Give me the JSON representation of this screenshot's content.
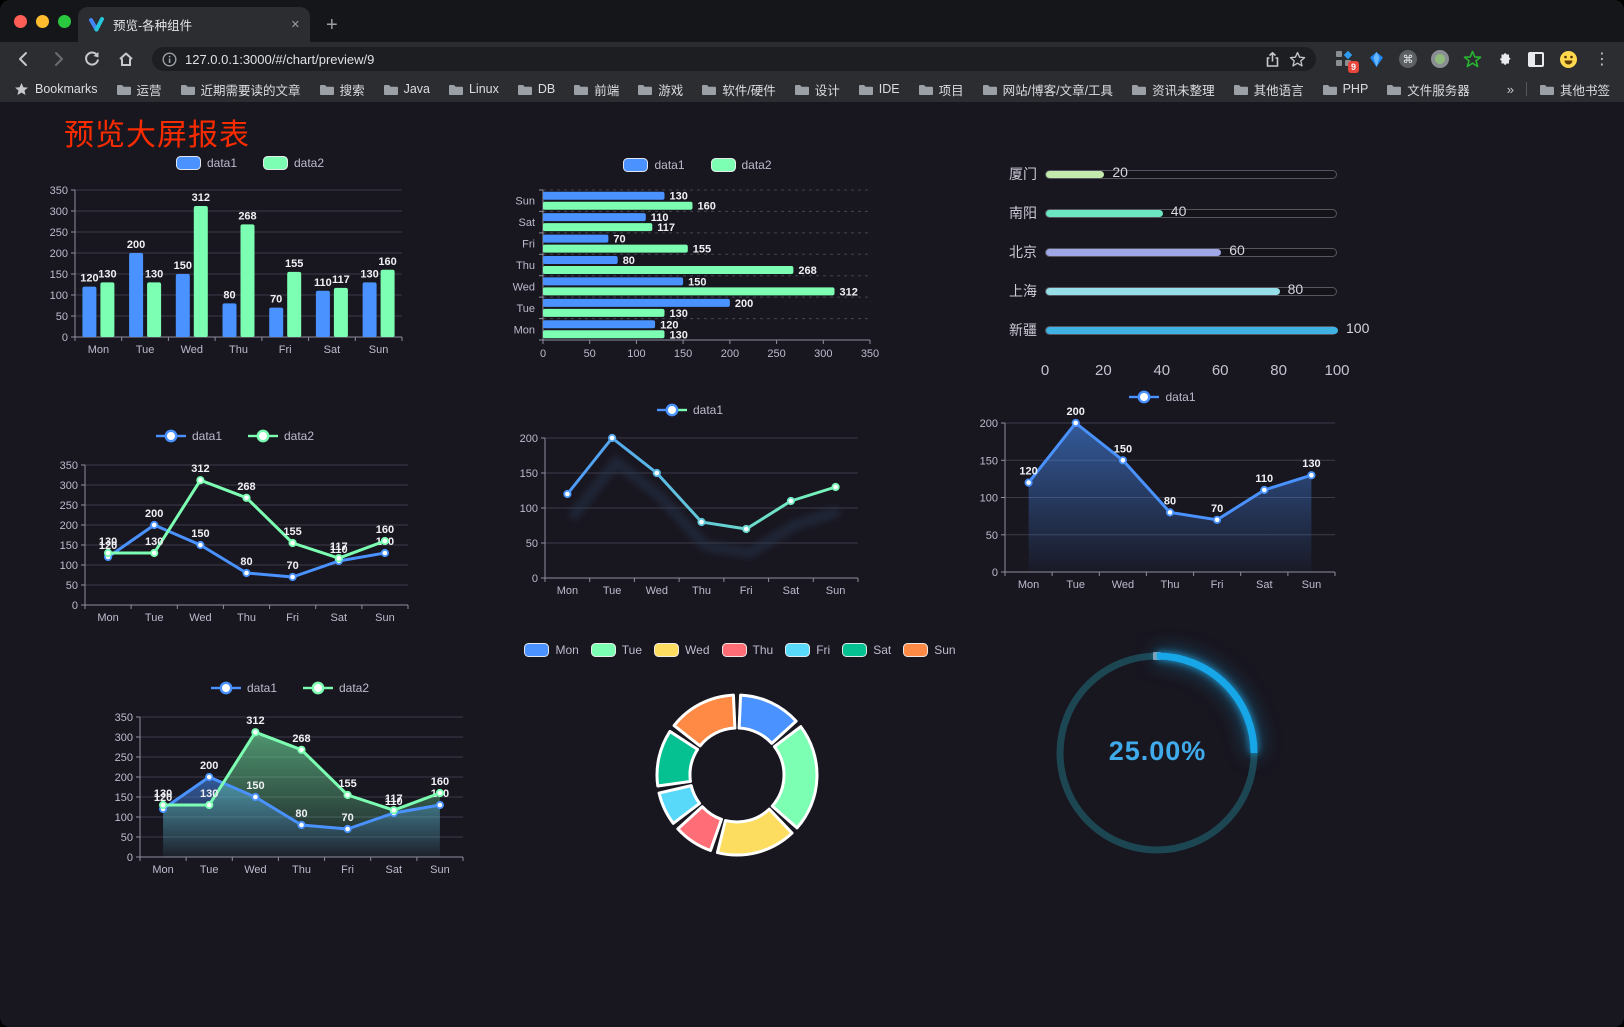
{
  "browser": {
    "tab": {
      "title": "预览-各种组件",
      "close_glyph": "✕"
    },
    "new_tab_glyph": "+",
    "url": "127.0.0.1:3000/#/chart/preview/9",
    "bookmarks_bar": {
      "bookmarks_label": "Bookmarks",
      "folders": [
        "运营",
        "近期需要读的文章",
        "搜索",
        "Java",
        "Linux",
        "DB",
        "前端",
        "游戏",
        "软件/硬件",
        "设计",
        "IDE",
        "项目",
        "网站/博客/文章/工具",
        "资讯未整理",
        "其他语言",
        "PHP",
        "文件服务器"
      ],
      "overflow_glyph": "»",
      "other_bookmarks": "其他书签"
    },
    "extensions": {
      "badge": "9",
      "command_glyph": "⌘"
    },
    "menu_glyph": "⋮"
  },
  "page": {
    "title": "预览大屏报表",
    "title_color": "#fb2b00",
    "background": "#18161f"
  },
  "chart_data": [
    {
      "type": "bar",
      "legend_marker": "rect",
      "categories": [
        "Mon",
        "Tue",
        "Wed",
        "Thu",
        "Fri",
        "Sat",
        "Sun"
      ],
      "series": [
        {
          "name": "data1",
          "color": "#4992ff",
          "values": [
            120,
            200,
            150,
            80,
            70,
            110,
            130
          ]
        },
        {
          "name": "data2",
          "color": "#7cffb2",
          "values": [
            130,
            130,
            312,
            268,
            155,
            117,
            160
          ]
        }
      ],
      "ylim": [
        0,
        350
      ],
      "ytick_step": 50,
      "grid": true,
      "value_labels": true,
      "legend_position": "top"
    },
    {
      "type": "bar-horizontal",
      "legend_marker": "rect",
      "categories_top_to_bottom": [
        "Sun",
        "Sat",
        "Fri",
        "Thu",
        "Wed",
        "Tue",
        "Mon"
      ],
      "series": [
        {
          "name": "data1",
          "color": "#4992ff",
          "values": [
            130,
            110,
            70,
            80,
            150,
            200,
            120
          ]
        },
        {
          "name": "data2",
          "color": "#7cffb2",
          "values": [
            160,
            117,
            155,
            268,
            312,
            130,
            130
          ]
        }
      ],
      "xlim": [
        0,
        350
      ],
      "xtick_step": 50,
      "value_labels": true,
      "legend_position": "top"
    },
    {
      "type": "progress",
      "items": [
        {
          "label": "厦门",
          "value": 20,
          "color": "#c4ebad"
        },
        {
          "label": "南阳",
          "value": 40,
          "color": "#6be6c1"
        },
        {
          "label": "北京",
          "value": 60,
          "color": "#a0a7e6"
        },
        {
          "label": "上海",
          "value": 80,
          "color": "#96dee8"
        },
        {
          "label": "新疆",
          "value": 100,
          "color": "#3fb1e3"
        }
      ],
      "xticks": [
        0,
        20,
        40,
        60,
        80,
        100
      ],
      "xlim": [
        0,
        100
      ]
    },
    {
      "type": "line",
      "legend_marker": "circle",
      "categories": [
        "Mon",
        "Tue",
        "Wed",
        "Thu",
        "Fri",
        "Sat",
        "Sun"
      ],
      "series": [
        {
          "name": "data1",
          "color": "#4992ff",
          "values": [
            120,
            200,
            150,
            80,
            70,
            110,
            130
          ]
        },
        {
          "name": "data2",
          "color": "#7cffb2",
          "values": [
            130,
            130,
            312,
            268,
            155,
            117,
            160
          ]
        }
      ],
      "ylim": [
        0,
        350
      ],
      "ytick_step": 50,
      "value_labels": true,
      "legend_position": "top"
    },
    {
      "type": "line",
      "legend_marker": "circle",
      "categories": [
        "Mon",
        "Tue",
        "Wed",
        "Thu",
        "Fri",
        "Sat",
        "Sun"
      ],
      "series": [
        {
          "name": "data1",
          "gradient": [
            "#4992ff",
            "#7cffb2"
          ],
          "values": [
            120,
            200,
            150,
            80,
            70,
            110,
            130
          ]
        }
      ],
      "ylim": [
        0,
        200
      ],
      "ytick_step": 50,
      "value_labels": false,
      "echo": true,
      "legend_position": "top"
    },
    {
      "type": "area",
      "legend_marker": "circle",
      "categories": [
        "Mon",
        "Tue",
        "Wed",
        "Thu",
        "Fri",
        "Sat",
        "Sun"
      ],
      "series": [
        {
          "name": "data1",
          "color": "#4992ff",
          "area": true,
          "values": [
            120,
            200,
            150,
            80,
            70,
            110,
            130
          ]
        }
      ],
      "ylim": [
        0,
        200
      ],
      "ytick_step": 50,
      "value_labels": true,
      "legend_position": "top"
    },
    {
      "type": "area",
      "legend_marker": "circle",
      "categories": [
        "Mon",
        "Tue",
        "Wed",
        "Thu",
        "Fri",
        "Sat",
        "Sun"
      ],
      "series": [
        {
          "name": "data1",
          "color": "#4992ff",
          "area": true,
          "values": [
            120,
            200,
            150,
            80,
            70,
            110,
            130
          ]
        },
        {
          "name": "data2",
          "color": "#7cffb2",
          "area": true,
          "values": [
            130,
            130,
            312,
            268,
            155,
            117,
            160
          ]
        }
      ],
      "ylim": [
        0,
        350
      ],
      "ytick_step": 50,
      "value_labels": true,
      "legend_position": "top"
    },
    {
      "type": "pie",
      "shape": "donut",
      "legend_marker": "rect",
      "categories": [
        "Mon",
        "Tue",
        "Wed",
        "Thu",
        "Fri",
        "Sat",
        "Sun"
      ],
      "values": [
        120,
        200,
        150,
        80,
        70,
        110,
        130
      ],
      "colors": [
        "#4992ff",
        "#7cffb2",
        "#fddd60",
        "#ff6e76",
        "#58d9f9",
        "#05c091",
        "#ff8a45"
      ],
      "legend_position": "top"
    },
    {
      "type": "gauge",
      "value": 25,
      "label": "25.00%",
      "arc_color": "#17a7e8",
      "track_color": "#1d4653",
      "text_color": "#3fabea"
    }
  ]
}
